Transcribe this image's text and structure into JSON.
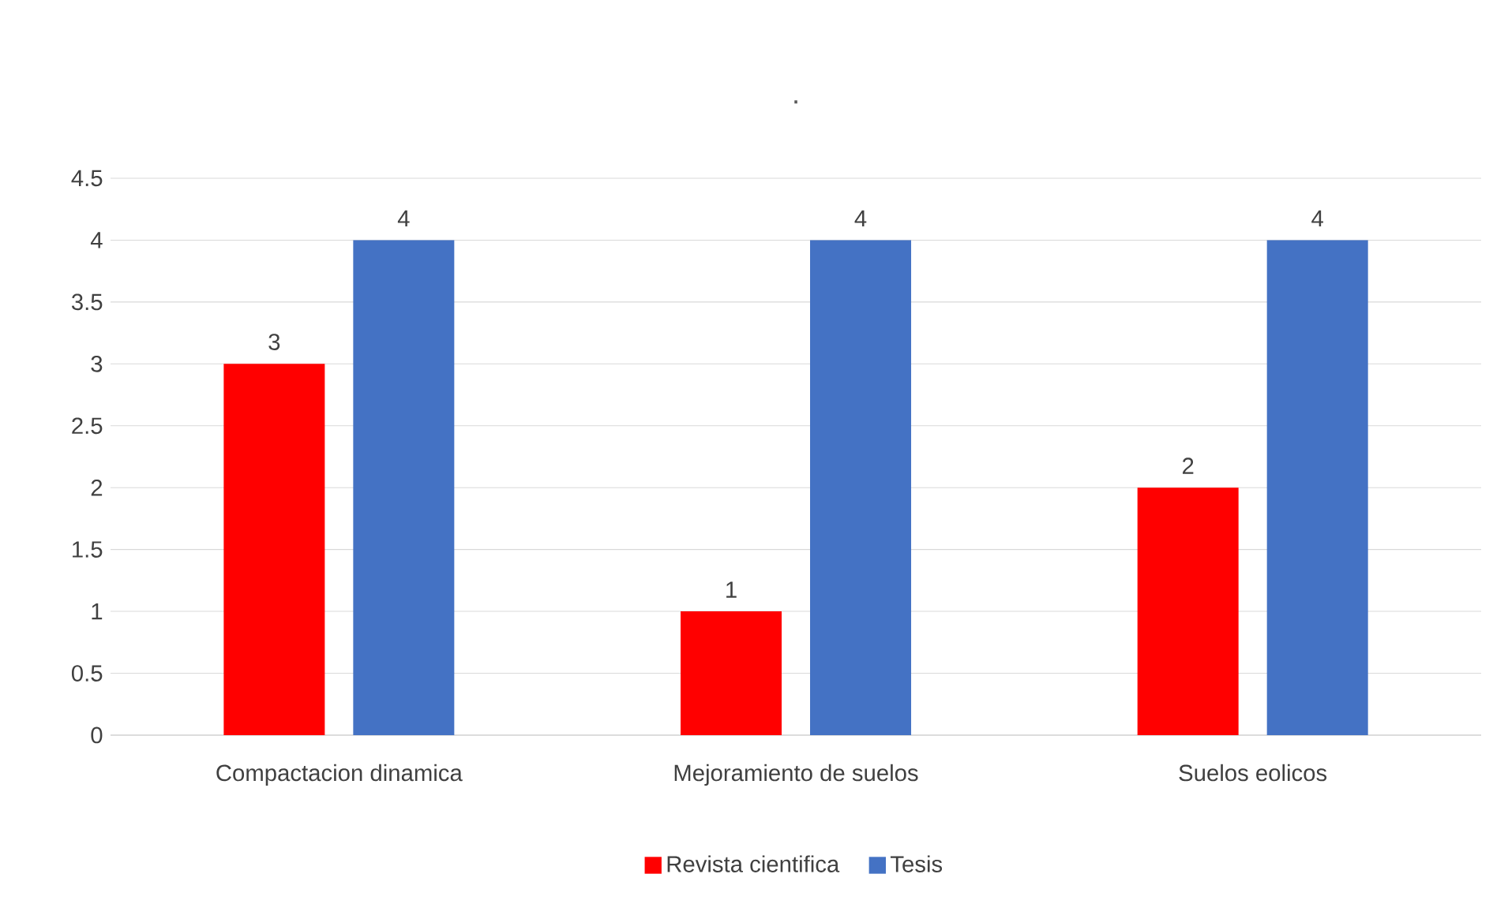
{
  "chart_data": {
    "type": "bar",
    "title": ".",
    "categories": [
      "Compactacion dinamica",
      "Mejoramiento de suelos",
      "Suelos eolicos"
    ],
    "series": [
      {
        "name": "Revista cientifica",
        "color": "#ff0000",
        "values": [
          3,
          1,
          2
        ]
      },
      {
        "name": "Tesis",
        "color": "#4472c4",
        "values": [
          4,
          4,
          4
        ]
      }
    ],
    "ylim": [
      0,
      4.5
    ],
    "yticks": [
      0,
      0.5,
      1,
      1.5,
      2,
      2.5,
      3,
      3.5,
      4,
      4.5
    ],
    "grid": "y",
    "legend": "bottom",
    "data_labels": true
  }
}
